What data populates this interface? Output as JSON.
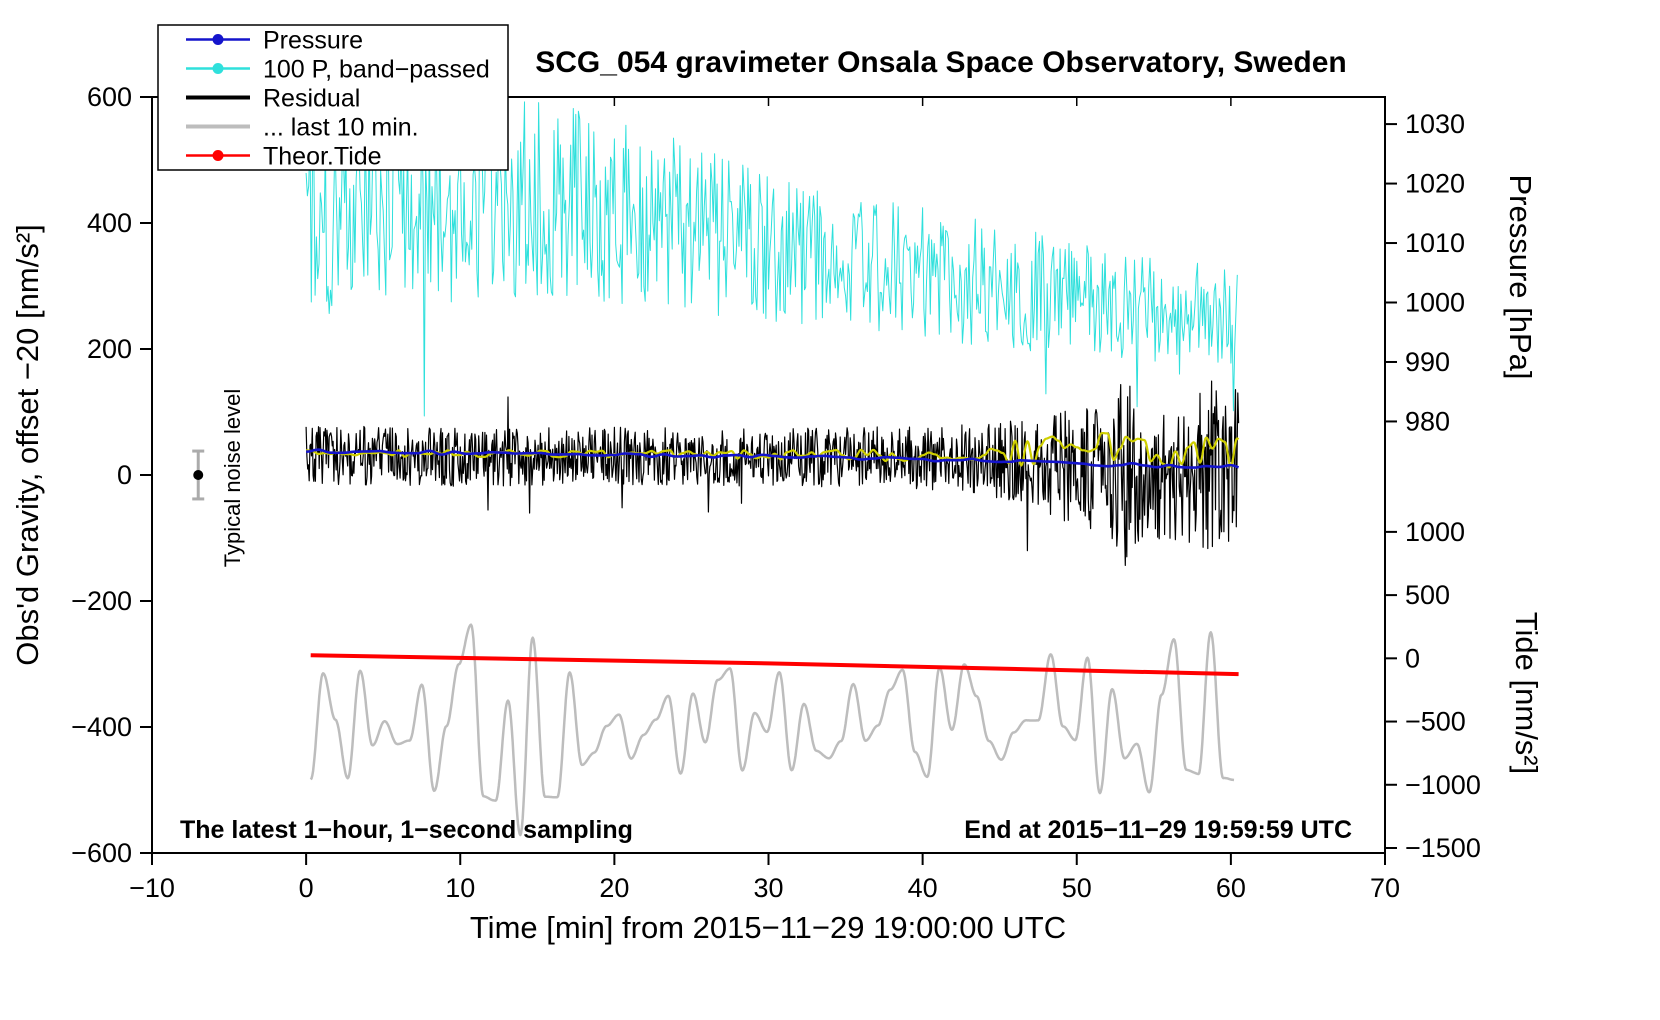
{
  "chart_data": {
    "type": "line",
    "title": "SCG_054 gravimeter Onsala Space Observatory, Sweden",
    "xlabel": "Time [min] from 2015−11−29 19:00:00 UTC",
    "ylabel_left": "Obs'd Gravity, offset −20 [nm/s²]",
    "xlim": [
      -10,
      70
    ],
    "ylim_left": [
      -600,
      600
    ],
    "x_ticks": [
      -10,
      0,
      10,
      20,
      30,
      40,
      50,
      60,
      70
    ],
    "y_ticks_left": [
      -600,
      -400,
      -200,
      0,
      200,
      400,
      600
    ],
    "grid": false,
    "legend_position": "top-left",
    "pressure_axis": {
      "label": "Pressure [hPa]",
      "ticks": [
        1030,
        1020,
        1010,
        1000,
        990,
        980
      ],
      "left_y_of_980": 85,
      "left_y_per_hpa": 9.44
    },
    "tide_axis": {
      "label": "Tide [nm/s²]",
      "ticks": [
        1000,
        500,
        0,
        -500,
        -1000,
        -1500
      ],
      "left_y_of_0": -291,
      "left_y_per_unit": 0.2007
    },
    "legend": {
      "items": [
        {
          "label": "Pressure",
          "color": "#1414CC",
          "marker": "dot"
        },
        {
          "label": "100 P, band−passed",
          "color": "#2FE0DC",
          "marker": "dot"
        },
        {
          "label": "Residual",
          "color": "#000000",
          "marker": "line"
        },
        {
          "label": "... last 10 min.",
          "color": "#BDBDBD",
          "marker": "line"
        },
        {
          "label": "Theor.Tide",
          "color": "#FF0000",
          "marker": "dot"
        }
      ]
    },
    "noise_marker": {
      "label": "Typical noise level",
      "x": -7,
      "y": 0,
      "error": 38
    },
    "note_left": "The latest 1−hour, 1−second sampling",
    "note_right": "End at 2015−11−29 19:59:59 UTC",
    "series": [
      {
        "id": "band-passed-pressure",
        "name": "100 P, band−passed",
        "color": "#2FE0DC",
        "width": 1,
        "type": "noise",
        "seed": 101,
        "points_per_min": 12,
        "x_start": 0,
        "x_end": 60.5,
        "spike_prob": 0.012,
        "spike_dir": -1,
        "keypoints": [
          {
            "x": 0,
            "c": 400,
            "a": 150
          },
          {
            "x": 5,
            "c": 420,
            "a": 150
          },
          {
            "x": 10,
            "c": 430,
            "a": 155
          },
          {
            "x": 15,
            "c": 440,
            "a": 160
          },
          {
            "x": 20,
            "c": 420,
            "a": 150
          },
          {
            "x": 25,
            "c": 400,
            "a": 140
          },
          {
            "x": 30,
            "c": 360,
            "a": 120
          },
          {
            "x": 35,
            "c": 340,
            "a": 110
          },
          {
            "x": 40,
            "c": 320,
            "a": 105
          },
          {
            "x": 45,
            "c": 300,
            "a": 100
          },
          {
            "x": 50,
            "c": 280,
            "a": 90
          },
          {
            "x": 55,
            "c": 262,
            "a": 82
          },
          {
            "x": 60.5,
            "c": 255,
            "a": 78
          }
        ]
      },
      {
        "id": "residual",
        "name": "Residual",
        "color": "#000000",
        "width": 1.2,
        "type": "noise",
        "seed": 202,
        "points_per_min": 20,
        "x_start": 0,
        "x_end": 60.5,
        "spike_prob": 0.008,
        "spike_dir": 0,
        "keypoints": [
          {
            "x": 0,
            "c": 30,
            "a": 50
          },
          {
            "x": 10,
            "c": 28,
            "a": 46
          },
          {
            "x": 20,
            "c": 30,
            "a": 46
          },
          {
            "x": 30,
            "c": 28,
            "a": 46
          },
          {
            "x": 40,
            "c": 28,
            "a": 50
          },
          {
            "x": 44,
            "c": 25,
            "a": 56
          },
          {
            "x": 47,
            "c": 20,
            "a": 70
          },
          {
            "x": 49,
            "c": 15,
            "a": 85
          },
          {
            "x": 51,
            "c": 20,
            "a": 120
          },
          {
            "x": 52.5,
            "c": 25,
            "a": 200
          },
          {
            "x": 54,
            "c": 10,
            "a": 130
          },
          {
            "x": 55.5,
            "c": -5,
            "a": 100
          },
          {
            "x": 57,
            "c": 0,
            "a": 120
          },
          {
            "x": 58.5,
            "c": 5,
            "a": 150
          },
          {
            "x": 59.5,
            "c": 10,
            "a": 150
          },
          {
            "x": 60.5,
            "c": 25,
            "a": 110
          }
        ]
      },
      {
        "id": "band-passed-residual",
        "name": "Band-passed residual",
        "color": "#CFCF00",
        "width": 2.2,
        "type": "wave",
        "seed": 303,
        "wave_step": 0.4,
        "x_start": 0,
        "x_end": 60.5,
        "keypoints": [
          {
            "x": 0,
            "c": 35,
            "a": 5
          },
          {
            "x": 20,
            "c": 33,
            "a": 6
          },
          {
            "x": 35,
            "c": 32,
            "a": 8
          },
          {
            "x": 40,
            "c": 30,
            "a": 10
          },
          {
            "x": 44,
            "c": 32,
            "a": 16
          },
          {
            "x": 46,
            "c": 35,
            "a": 22
          },
          {
            "x": 48,
            "c": 38,
            "a": 26
          },
          {
            "x": 50,
            "c": 42,
            "a": 30
          },
          {
            "x": 52,
            "c": 48,
            "a": 34
          },
          {
            "x": 54,
            "c": 40,
            "a": 30
          },
          {
            "x": 56,
            "c": 35,
            "a": 26
          },
          {
            "x": 58,
            "c": 38,
            "a": 28
          },
          {
            "x": 60.5,
            "c": 40,
            "a": 26
          }
        ]
      },
      {
        "id": "pressure",
        "name": "Pressure",
        "color": "#1414CC",
        "width": 2.6,
        "type": "wave",
        "seed": 404,
        "wave_step": 0.8,
        "x_start": 0,
        "x_end": 60.5,
        "keypoints": [
          {
            "x": 0,
            "c": 38,
            "a": 3
          },
          {
            "x": 10,
            "c": 35,
            "a": 3
          },
          {
            "x": 20,
            "c": 32,
            "a": 3
          },
          {
            "x": 30,
            "c": 29,
            "a": 3
          },
          {
            "x": 40,
            "c": 25,
            "a": 3
          },
          {
            "x": 45,
            "c": 22,
            "a": 3
          },
          {
            "x": 50,
            "c": 18,
            "a": 3
          },
          {
            "x": 55,
            "c": 15,
            "a": 3
          },
          {
            "x": 60.5,
            "c": 13,
            "a": 3
          }
        ]
      },
      {
        "id": "residual-last-10-min",
        "name": "... last 10 min.",
        "color": "#BDBDBD",
        "width": 2.5,
        "type": "wave",
        "seed": 505,
        "wave_step": 0.8,
        "x_start": 0.3,
        "x_end": 60.2,
        "keypoints": [
          {
            "x": 0,
            "c": -390,
            "a": 100
          },
          {
            "x": 3,
            "c": -395,
            "a": 110
          },
          {
            "x": 6,
            "c": -400,
            "a": 130
          },
          {
            "x": 9,
            "c": -400,
            "a": 170
          },
          {
            "x": 12,
            "c": -400,
            "a": 185
          },
          {
            "x": 15,
            "c": -400,
            "a": 180
          },
          {
            "x": 18,
            "c": -400,
            "a": 175
          },
          {
            "x": 20,
            "c": -400,
            "a": 140
          },
          {
            "x": 23,
            "c": -395,
            "a": 95
          },
          {
            "x": 27,
            "c": -390,
            "a": 85
          },
          {
            "x": 31,
            "c": -390,
            "a": 95
          },
          {
            "x": 35,
            "c": -395,
            "a": 105
          },
          {
            "x": 39,
            "c": -390,
            "a": 95
          },
          {
            "x": 43,
            "c": -390,
            "a": 95
          },
          {
            "x": 47,
            "c": -390,
            "a": 100
          },
          {
            "x": 50,
            "c": -385,
            "a": 125
          },
          {
            "x": 53,
            "c": -390,
            "a": 120
          },
          {
            "x": 56,
            "c": -385,
            "a": 135
          },
          {
            "x": 58,
            "c": -385,
            "a": 150
          },
          {
            "x": 60.2,
            "c": -390,
            "a": 130
          }
        ]
      },
      {
        "id": "theoretical-tide",
        "name": "Theor.Tide",
        "color": "#FF0000",
        "width": 4,
        "type": "line",
        "points": [
          [
            0.3,
            -286
          ],
          [
            30,
            -299
          ],
          [
            60.5,
            -316
          ]
        ]
      }
    ]
  }
}
